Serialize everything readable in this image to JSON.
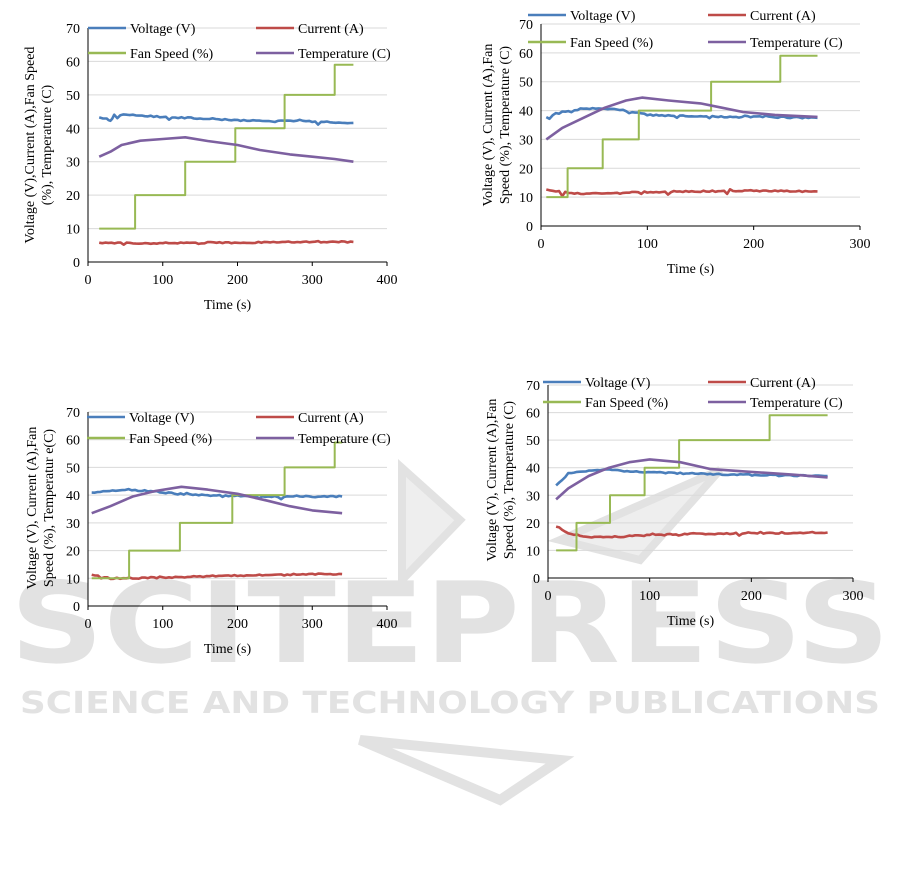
{
  "watermark": {
    "brand": "SCITEPRESS",
    "tagline": "SCIENCE AND TECHNOLOGY PUBLICATIONS",
    "color": "#e2e2e2"
  },
  "colors": {
    "voltage": "#4a7ebb",
    "current": "#be4b48",
    "fan": "#98b954",
    "temperature": "#7d60a0"
  },
  "chart_data": [
    {
      "type": "line",
      "xlabel": "Time (s)",
      "ylabel": [
        "Voltage (V),Current (A),Fan Speed",
        "(%), Temperature (C)"
      ],
      "xlim": [
        0,
        400
      ],
      "xticks": [
        0,
        100,
        200,
        300,
        400
      ],
      "ylim": [
        0,
        70
      ],
      "yticks": [
        0,
        10,
        20,
        30,
        40,
        50,
        60,
        70
      ],
      "grid": "horizontal",
      "legend": "top",
      "series": [
        {
          "name": "Voltage (V)",
          "color": "#4a7ebb",
          "points": [
            [
              15,
              43.2
            ],
            [
              25,
              43
            ],
            [
              30,
              42.2
            ],
            [
              35,
              44
            ],
            [
              60,
              44
            ],
            [
              100,
              43.4
            ],
            [
              150,
              43
            ],
            [
              200,
              42.4
            ],
            [
              250,
              42.2
            ],
            [
              300,
              42
            ],
            [
              355,
              41.6
            ]
          ]
        },
        {
          "name": "Current (A)",
          "color": "#be4b48",
          "points": [
            [
              15,
              5.8
            ],
            [
              60,
              5.6
            ],
            [
              120,
              5.7
            ],
            [
              200,
              5.8
            ],
            [
              280,
              6
            ],
            [
              355,
              6
            ]
          ]
        },
        {
          "name": "Fan Speed (%)",
          "color": "#98b954",
          "step": true,
          "points": [
            [
              15,
              10
            ],
            [
              63,
              10
            ],
            [
              63,
              20
            ],
            [
              130,
              20
            ],
            [
              130,
              30
            ],
            [
              197,
              30
            ],
            [
              197,
              40
            ],
            [
              263,
              40
            ],
            [
              263,
              50
            ],
            [
              330,
              50
            ],
            [
              330,
              59
            ],
            [
              355,
              59
            ]
          ]
        },
        {
          "name": "Temperature (C)",
          "color": "#7d60a0",
          "points": [
            [
              15,
              31.5
            ],
            [
              30,
              33
            ],
            [
              45,
              35
            ],
            [
              70,
              36.3
            ],
            [
              100,
              36.8
            ],
            [
              130,
              37.3
            ],
            [
              160,
              36.2
            ],
            [
              200,
              35
            ],
            [
              230,
              33.5
            ],
            [
              270,
              32.2
            ],
            [
              300,
              31.5
            ],
            [
              330,
              30.8
            ],
            [
              355,
              30
            ]
          ]
        }
      ]
    },
    {
      "type": "line",
      "xlabel": "Time (s)",
      "ylabel": [
        "Voltage (V), Current (A),Fan",
        "Speed (%), Temperature (C)"
      ],
      "xlim": [
        0,
        300
      ],
      "xticks": [
        0,
        100,
        200,
        300
      ],
      "ylim": [
        0,
        70
      ],
      "yticks": [
        0,
        10,
        20,
        30,
        40,
        50,
        60,
        70
      ],
      "grid": "horizontal",
      "legend": "top",
      "series": [
        {
          "name": "Voltage (V)",
          "color": "#4a7ebb",
          "points": [
            [
              5,
              37.5
            ],
            [
              20,
              39.5
            ],
            [
              40,
              40.5
            ],
            [
              60,
              40.8
            ],
            [
              80,
              40
            ],
            [
              100,
              38.5
            ],
            [
              150,
              38
            ],
            [
              200,
              37.8
            ],
            [
              260,
              37.5
            ]
          ]
        },
        {
          "name": "Current (A)",
          "color": "#be4b48",
          "points": [
            [
              5,
              12.5
            ],
            [
              20,
              11.7
            ],
            [
              40,
              11.2
            ],
            [
              60,
              11.2
            ],
            [
              100,
              11.8
            ],
            [
              150,
              12
            ],
            [
              200,
              12.2
            ],
            [
              260,
              12
            ]
          ]
        },
        {
          "name": "Fan Speed (%)",
          "color": "#98b954",
          "step": true,
          "points": [
            [
              5,
              10
            ],
            [
              25,
              10
            ],
            [
              25,
              20
            ],
            [
              58,
              20
            ],
            [
              58,
              30
            ],
            [
              92,
              30
            ],
            [
              92,
              40
            ],
            [
              160,
              40
            ],
            [
              160,
              50
            ],
            [
              225,
              50
            ],
            [
              225,
              59
            ],
            [
              260,
              59
            ]
          ]
        },
        {
          "name": "Temperature (C)",
          "color": "#7d60a0",
          "points": [
            [
              5,
              30
            ],
            [
              20,
              34
            ],
            [
              40,
              37.5
            ],
            [
              60,
              41
            ],
            [
              80,
              43.5
            ],
            [
              95,
              44.5
            ],
            [
              120,
              43.5
            ],
            [
              150,
              42.5
            ],
            [
              170,
              41
            ],
            [
              190,
              39.5
            ],
            [
              220,
              38.5
            ],
            [
              260,
              37.8
            ]
          ]
        }
      ]
    },
    {
      "type": "line",
      "xlabel": "Time (s)",
      "ylabel": [
        "Voltage (V), Current (A),Fan",
        "Speed (%), Temperatur e(C)"
      ],
      "xlim": [
        0,
        400
      ],
      "xticks": [
        0,
        100,
        200,
        300,
        400
      ],
      "ylim": [
        0,
        70
      ],
      "yticks": [
        0,
        10,
        20,
        30,
        40,
        50,
        60,
        70
      ],
      "grid": "horizontal",
      "legend": "top",
      "series": [
        {
          "name": "Voltage (V)",
          "color": "#4a7ebb",
          "points": [
            [
              5,
              41
            ],
            [
              20,
              41.5
            ],
            [
              50,
              42
            ],
            [
              80,
              41.5
            ],
            [
              120,
              40.5
            ],
            [
              160,
              40
            ],
            [
              200,
              39.7
            ],
            [
              250,
              39.5
            ],
            [
              300,
              39.5
            ],
            [
              340,
              39.5
            ]
          ]
        },
        {
          "name": "Current (A)",
          "color": "#be4b48",
          "points": [
            [
              5,
              11.5
            ],
            [
              30,
              10
            ],
            [
              60,
              10
            ],
            [
              100,
              10.3
            ],
            [
              150,
              10.7
            ],
            [
              200,
              11
            ],
            [
              250,
              11.2
            ],
            [
              300,
              11.5
            ],
            [
              340,
              11.5
            ]
          ]
        },
        {
          "name": "Fan Speed (%)",
          "color": "#98b954",
          "step": true,
          "points": [
            [
              5,
              10
            ],
            [
              55,
              10
            ],
            [
              55,
              20
            ],
            [
              123,
              20
            ],
            [
              123,
              30
            ],
            [
              193,
              30
            ],
            [
              193,
              40
            ],
            [
              263,
              40
            ],
            [
              263,
              50
            ],
            [
              330,
              50
            ],
            [
              330,
              59
            ],
            [
              340,
              59
            ]
          ]
        },
        {
          "name": "Temperature (C)",
          "color": "#7d60a0",
          "points": [
            [
              5,
              33.5
            ],
            [
              30,
              36
            ],
            [
              60,
              39.5
            ],
            [
              90,
              41.5
            ],
            [
              125,
              43
            ],
            [
              160,
              42
            ],
            [
              200,
              40.5
            ],
            [
              240,
              38
            ],
            [
              270,
              36
            ],
            [
              300,
              34.5
            ],
            [
              340,
              33.5
            ]
          ]
        }
      ]
    },
    {
      "type": "line",
      "xlabel": "Time (s)",
      "ylabel": [
        "Voltage (V), Current (A),Fan",
        "Speed (%), Temperature (C)"
      ],
      "xlim": [
        0,
        300
      ],
      "xticks": [
        0,
        100,
        200,
        300
      ],
      "ylim": [
        0,
        70
      ],
      "yticks": [
        0,
        10,
        20,
        30,
        40,
        50,
        60,
        70
      ],
      "grid": "horizontal",
      "legend": "top",
      "series": [
        {
          "name": "Voltage (V)",
          "color": "#4a7ebb",
          "points": [
            [
              8,
              33.5
            ],
            [
              20,
              38
            ],
            [
              40,
              39
            ],
            [
              60,
              39.2
            ],
            [
              90,
              38.5
            ],
            [
              130,
              38
            ],
            [
              180,
              37.5
            ],
            [
              230,
              37.2
            ],
            [
              275,
              37
            ]
          ]
        },
        {
          "name": "Current (A)",
          "color": "#be4b48",
          "points": [
            [
              8,
              19
            ],
            [
              20,
              16.2
            ],
            [
              40,
              14.8
            ],
            [
              60,
              14.8
            ],
            [
              100,
              15.5
            ],
            [
              140,
              16
            ],
            [
              200,
              16.2
            ],
            [
              275,
              16.5
            ]
          ]
        },
        {
          "name": "Fan Speed (%)",
          "color": "#98b954",
          "step": true,
          "points": [
            [
              8,
              10
            ],
            [
              28,
              10
            ],
            [
              28,
              20
            ],
            [
              61,
              20
            ],
            [
              61,
              30
            ],
            [
              95,
              30
            ],
            [
              95,
              40
            ],
            [
              129,
              40
            ],
            [
              129,
              50
            ],
            [
              218,
              50
            ],
            [
              218,
              59
            ],
            [
              275,
              59
            ]
          ]
        },
        {
          "name": "Temperature (C)",
          "color": "#7d60a0",
          "points": [
            [
              8,
              28.5
            ],
            [
              20,
              32.5
            ],
            [
              40,
              37
            ],
            [
              60,
              40
            ],
            [
              80,
              42
            ],
            [
              100,
              43
            ],
            [
              130,
              42
            ],
            [
              160,
              39.5
            ],
            [
              200,
              38.5
            ],
            [
              240,
              37.5
            ],
            [
              275,
              36.5
            ]
          ]
        }
      ]
    }
  ]
}
